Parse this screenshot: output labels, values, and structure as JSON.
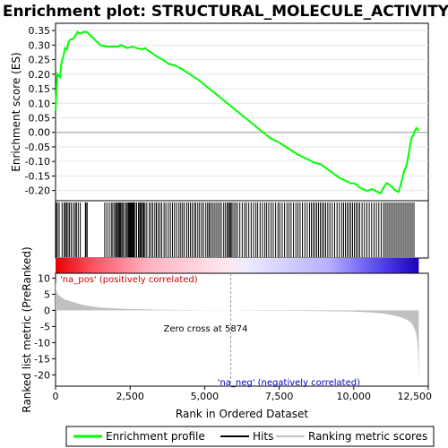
{
  "chart_data": {
    "type": "line",
    "title": "Enrichment plot: STRUCTURAL_MOLECULE_ACTIVITY",
    "xlabel": "Rank in Ordered Dataset",
    "es_ylabel": "Enrichment score (ES)",
    "metric_ylabel": "Ranked list metric (PreRanked)",
    "xlim": [
      0,
      12500
    ],
    "x_ticks": [
      0,
      2500,
      5000,
      7500,
      10000,
      12500
    ],
    "x_tick_labels": [
      "0",
      "2,500",
      "5,000",
      "7,500",
      "10,000",
      "12,500"
    ],
    "es_ylim": [
      -0.235,
      0.375
    ],
    "es_ticks": [
      0.35,
      0.3,
      0.25,
      0.2,
      0.15,
      0.1,
      0.05,
      0.0,
      -0.05,
      -0.1,
      -0.15,
      -0.2
    ],
    "es_tick_labels": [
      "0.35",
      "0.30",
      "0.25",
      "0.20",
      "0.15",
      "0.10",
      "0.05",
      "0.00",
      "-0.05",
      "-0.10",
      "-0.15",
      "-0.20"
    ],
    "metric_ylim": [
      -23.5,
      11.5
    ],
    "metric_ticks": [
      10,
      5,
      0,
      -5,
      -10,
      -15,
      -20
    ],
    "metric_tick_labels": [
      "10",
      "5",
      "0",
      "-5",
      "-10",
      "-15",
      "-20"
    ],
    "total_rank": 12180,
    "zero_cross_rank": 5874,
    "zero_cross_label": "Zero cross at 5874",
    "pos_label": "'na_pos' (positively correlated)",
    "neg_label": "'na_neg' (negatively correlated)",
    "series": [
      {
        "name": "Enrichment profile",
        "color": "#00ff00",
        "x": [
          0,
          30,
          60,
          100,
          150,
          200,
          260,
          320,
          380,
          440,
          500,
          560,
          620,
          680,
          740,
          800,
          860,
          920,
          980,
          1050,
          1150,
          1300,
          1500,
          1700,
          1900,
          2100,
          2200,
          2400,
          2600,
          2700,
          2900,
          3000,
          3200,
          3400,
          3600,
          3800,
          4000,
          4200,
          4500,
          4800,
          5100,
          5400,
          5700,
          6000,
          6300,
          6600,
          6900,
          7200,
          7500,
          7800,
          8100,
          8400,
          8700,
          8900,
          9100,
          9300,
          9500,
          9700,
          9800,
          9900,
          10000,
          10100,
          10200,
          10300,
          10400,
          10500,
          10600,
          10700,
          10800,
          10900,
          11000,
          11100,
          11200,
          11300,
          11400,
          11500,
          11550,
          11600,
          11650,
          11700,
          11750,
          11800,
          11850,
          11900,
          11950,
          12000,
          12050,
          12100,
          12150,
          12180
        ],
        "values": [
          0.075,
          0.15,
          0.2,
          0.195,
          0.19,
          0.24,
          0.26,
          0.29,
          0.285,
          0.31,
          0.32,
          0.32,
          0.325,
          0.335,
          0.345,
          0.34,
          0.34,
          0.345,
          0.345,
          0.345,
          0.335,
          0.32,
          0.3,
          0.295,
          0.295,
          0.295,
          0.3,
          0.29,
          0.295,
          0.29,
          0.285,
          0.29,
          0.275,
          0.26,
          0.25,
          0.235,
          0.23,
          0.22,
          0.2,
          0.18,
          0.155,
          0.13,
          0.105,
          0.08,
          0.055,
          0.03,
          0.005,
          -0.02,
          -0.035,
          -0.055,
          -0.075,
          -0.09,
          -0.105,
          -0.11,
          -0.125,
          -0.14,
          -0.155,
          -0.165,
          -0.17,
          -0.175,
          -0.175,
          -0.18,
          -0.19,
          -0.195,
          -0.2,
          -0.2,
          -0.195,
          -0.2,
          -0.205,
          -0.21,
          -0.19,
          -0.175,
          -0.18,
          -0.19,
          -0.2,
          -0.205,
          -0.19,
          -0.17,
          -0.15,
          -0.13,
          -0.12,
          -0.1,
          -0.07,
          -0.04,
          -0.015,
          -0.01,
          0.005,
          0.015,
          0.01,
          0.005
        ]
      },
      {
        "name": "Hits",
        "color": "#000000",
        "x": [
          20,
          60,
          120,
          220,
          290,
          330,
          370,
          420,
          470,
          530,
          600,
          660,
          700,
          760,
          830,
          1000,
          1020,
          1060,
          1650,
          1720,
          1800,
          1870,
          1920,
          1980,
          2020,
          2060,
          2100,
          2130,
          2160,
          2190,
          2230,
          2270,
          2330,
          2380,
          2410,
          2450,
          2480,
          2510,
          2540,
          2570,
          2600,
          2630,
          2670,
          2720,
          2780,
          2820,
          2850,
          2880,
          2920,
          2960,
          3000,
          3060,
          3140,
          3200,
          3260,
          3330,
          3380,
          3440,
          3500,
          3560,
          3640,
          3700,
          3780,
          3850,
          3920,
          3990,
          4060,
          4140,
          4200,
          4260,
          4320,
          4400,
          4460,
          4520,
          4580,
          4650,
          4700,
          4770,
          4830,
          4900,
          4960,
          5040,
          5100,
          5150,
          5200,
          5260,
          5320,
          5380,
          5440,
          5500,
          5560,
          5640,
          5700,
          5760,
          5800,
          5840,
          5880,
          5920,
          5980,
          6040,
          6100,
          6180,
          6260,
          6340,
          6400,
          6480,
          6560,
          6640,
          6720,
          6780,
          6860,
          6940,
          7020,
          7080,
          7150,
          7230,
          7300,
          7380,
          7460,
          7520,
          7600,
          7680,
          7760,
          7830,
          7900,
          7980,
          8060,
          8130,
          8200,
          8280,
          8360,
          8440,
          8520,
          8580,
          8640,
          8700,
          8760,
          8820,
          8880,
          8940,
          9000,
          9060,
          9130,
          9200,
          9280,
          9360,
          9440,
          9520,
          9600,
          9660,
          9720,
          9780,
          9840,
          9900,
          9960,
          10020,
          10080,
          10140,
          10200,
          10280,
          10360,
          10440,
          10520,
          10600,
          10680,
          10760,
          10840,
          10920,
          11000,
          11060,
          11120,
          11180,
          11240,
          11300,
          11360,
          11420,
          11480,
          11540,
          11600,
          11660,
          11720,
          11780,
          11840,
          11900,
          11960,
          12020
        ],
        "height": 1.0
      },
      {
        "name": "Ranking metric scores",
        "color": "#c0c0c0",
        "x": [
          0,
          20,
          50,
          100,
          200,
          300,
          500,
          800,
          1000,
          1500,
          2000,
          2500,
          3000,
          3500,
          4000,
          4500,
          5000,
          5500,
          5874,
          6500,
          7000,
          7500,
          8000,
          8500,
          9000,
          9500,
          10000,
          10500,
          10800,
          11000,
          11200,
          11400,
          11600,
          11700,
          11800,
          11900,
          11950,
          12000,
          12050,
          12100,
          12130,
          12160,
          12180
        ],
        "values": [
          9.5,
          6.5,
          5.5,
          4.8,
          4.0,
          3.4,
          2.8,
          2.0,
          1.5,
          0.9,
          0.6,
          0.4,
          0.3,
          0.2,
          0.15,
          0.1,
          0.06,
          0.03,
          0.0,
          -0.05,
          -0.08,
          -0.1,
          -0.15,
          -0.2,
          -0.25,
          -0.3,
          -0.4,
          -0.6,
          -0.8,
          -1.0,
          -1.3,
          -1.7,
          -2.2,
          -2.6,
          -3.0,
          -3.6,
          -4.2,
          -5.0,
          -6.0,
          -7.5,
          -9.5,
          -14.0,
          -22.0
        ]
      }
    ],
    "legend": {
      "position": "bottom",
      "entries": [
        "Enrichment profile",
        "Hits",
        "Ranking metric scores"
      ]
    }
  }
}
